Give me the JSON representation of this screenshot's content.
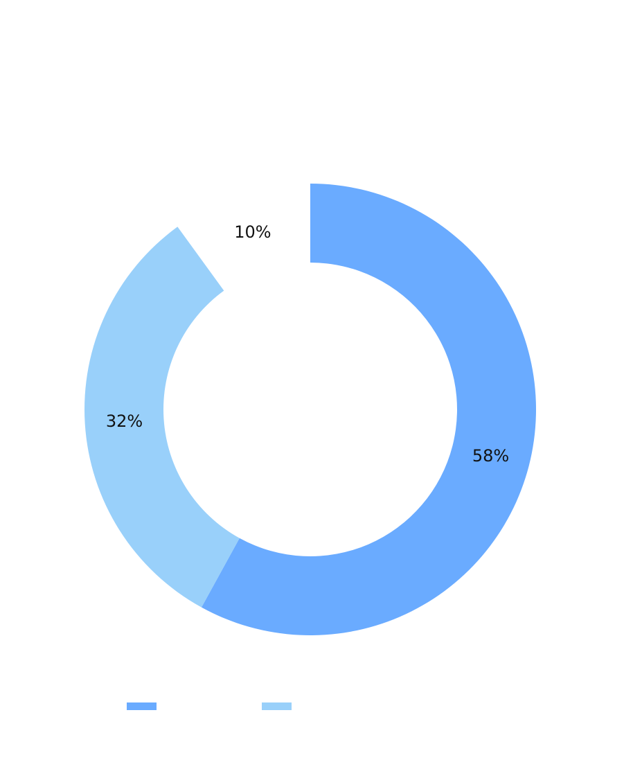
{
  "chart_data": {
    "type": "pie",
    "variant": "donut",
    "slices": [
      {
        "label": "58%",
        "value": 58,
        "color": "#6aabff"
      },
      {
        "label": "32%",
        "value": 32,
        "color": "#99d0fa"
      },
      {
        "label": "10%",
        "value": 10,
        "color": "#ffffff"
      }
    ],
    "legend": {
      "placement": "bottom-left",
      "entries": [
        {
          "color": "#6aabff"
        },
        {
          "color": "#99d0fa"
        }
      ]
    }
  }
}
